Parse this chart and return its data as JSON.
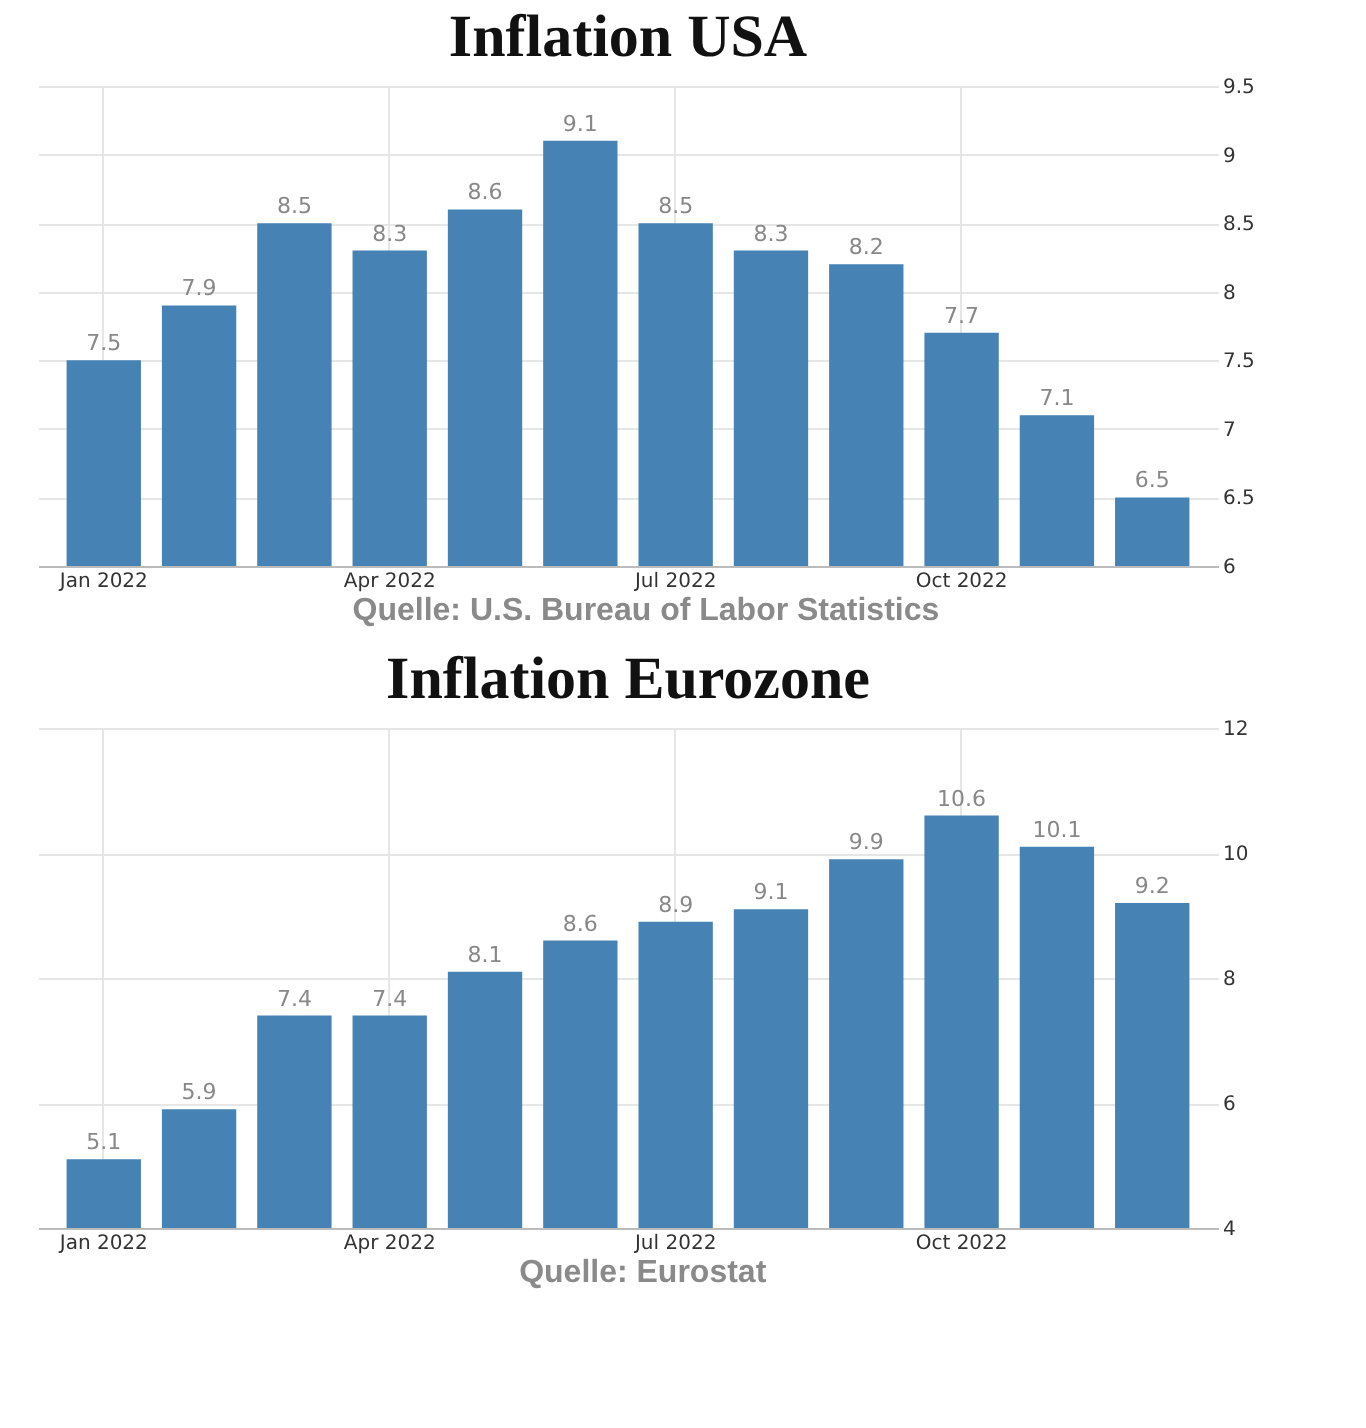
{
  "chart_data": [
    {
      "type": "bar",
      "title": "Inflation USA",
      "categories": [
        "Jan 2022",
        null,
        null,
        "Apr 2022",
        null,
        null,
        "Jul 2022",
        null,
        null,
        "Oct 2022",
        null,
        null
      ],
      "values": [
        7.5,
        7.9,
        8.5,
        8.3,
        8.6,
        9.1,
        8.5,
        8.3,
        8.2,
        7.7,
        7.1,
        6.5
      ],
      "color": "#4682b4",
      "ylim": [
        6,
        9.5
      ],
      "yticks": [
        6,
        6.5,
        7,
        7.5,
        8,
        8.5,
        9,
        9.5
      ],
      "grid": true,
      "data_labels": true,
      "annotations": [
        "Quelle: U.S. Bureau of Labor Statistics"
      ]
    },
    {
      "type": "bar",
      "title": "Inflation Eurozone",
      "categories": [
        "Jan 2022",
        null,
        null,
        "Apr 2022",
        null,
        null,
        "Jul 2022",
        null,
        null,
        "Oct 2022",
        null,
        null
      ],
      "values": [
        5.1,
        5.9,
        7.4,
        7.4,
        8.1,
        8.6,
        8.9,
        9.1,
        9.9,
        10.6,
        10.1,
        9.2
      ],
      "color": "#4682b4",
      "ylim": [
        4,
        12
      ],
      "yticks": [
        4,
        6,
        8,
        10,
        12
      ],
      "grid": true,
      "data_labels": true,
      "annotations": [
        "Quelle: Eurostat"
      ]
    }
  ]
}
